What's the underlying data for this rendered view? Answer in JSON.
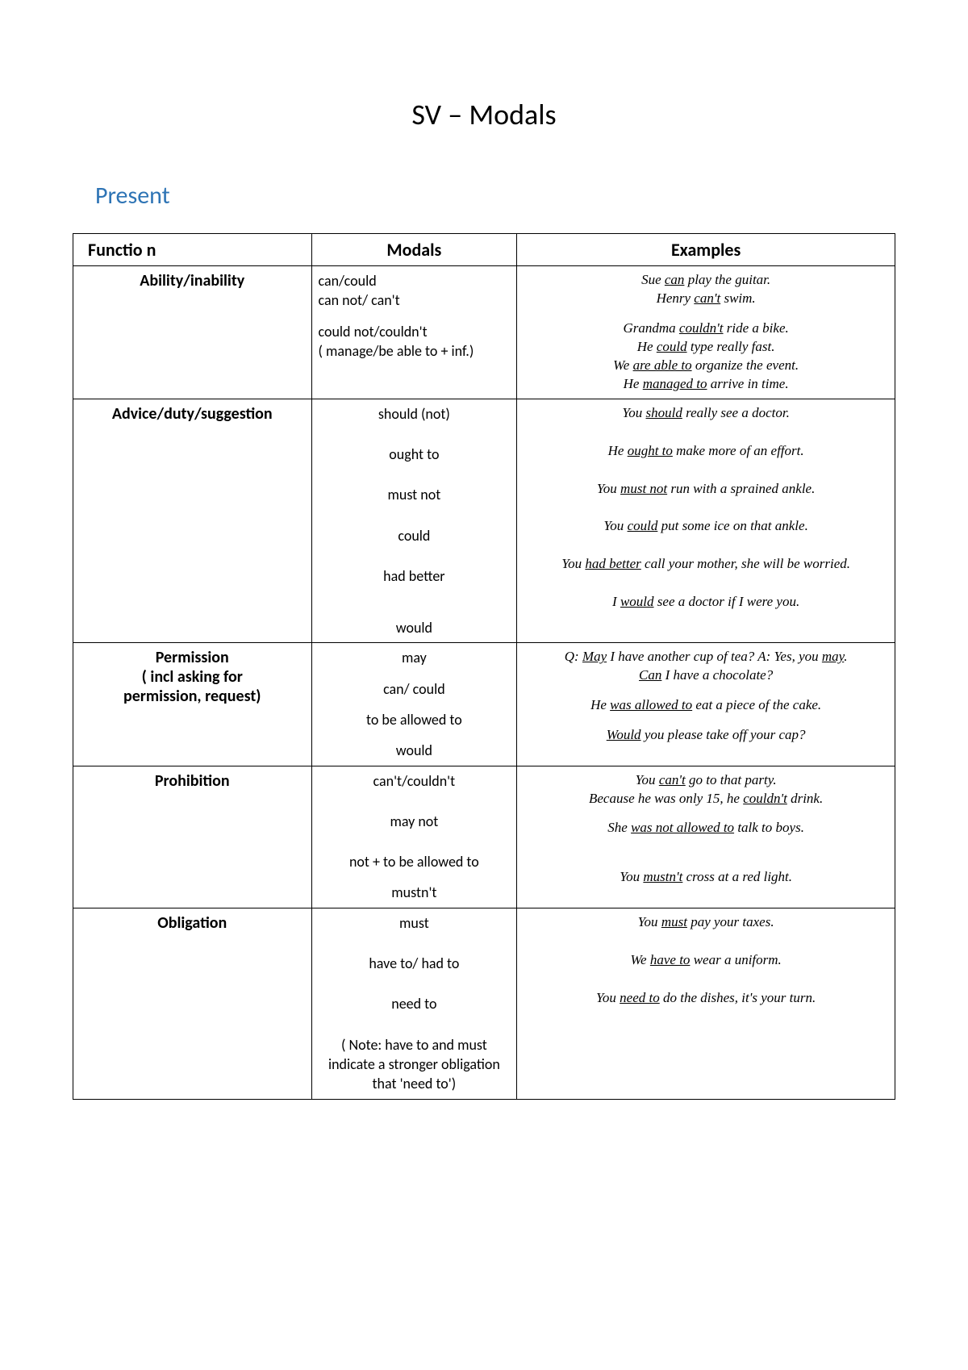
{
  "title": "SV – Modals",
  "section": "Present",
  "headers": {
    "fn": "Functio n",
    "mod": "Modals",
    "ex": "Examples"
  },
  "rows": [
    {
      "fn": [
        "Ability/inability"
      ],
      "mod_align": "left",
      "modals": [
        {
          "t": "can/could"
        },
        {
          "t": "can not/ can't"
        },
        {
          "gap": "s"
        },
        {
          "t": "could not/couldn't"
        },
        {
          "t": "( manage/be able to + inf.)"
        },
        {
          "gap": "s"
        }
      ],
      "examples": [
        {
          "pre": "Sue ",
          "u": "can",
          "post": " play the guitar."
        },
        {
          "pre": "Henry ",
          "u": "can't",
          "post": " swim."
        },
        {
          "gap": "s"
        },
        {
          "pre": "Grandma ",
          "u": "couldn't",
          "post": " ride a bike."
        },
        {
          "pre": "He ",
          "u": "could",
          "post": " type really fast."
        },
        {
          "pre": "We ",
          "u": "are able to",
          "post": " organize the event."
        },
        {
          "pre": "He ",
          "u": "managed to",
          "post": " arrive in time."
        }
      ]
    },
    {
      "fn": [
        "Advice/duty/suggestion"
      ],
      "mod_align": "center",
      "modals": [
        {
          "t": "should (not)"
        },
        {
          "gap": "m"
        },
        {
          "t": "ought to"
        },
        {
          "gap": "m"
        },
        {
          "t": "must not"
        },
        {
          "gap": "m"
        },
        {
          "t": "could"
        },
        {
          "gap": "m"
        },
        {
          "t": "had better"
        },
        {
          "gap": "m"
        },
        {
          "gap": "s"
        },
        {
          "t": "would"
        }
      ],
      "examples": [
        {
          "pre": "You ",
          "u": "should",
          "post": " really see a doctor."
        },
        {
          "gap": "m"
        },
        {
          "pre": "He ",
          "u": "ought to",
          "post": " make more of an effort."
        },
        {
          "gap": "m"
        },
        {
          "pre": "You ",
          "u": "must not",
          "post": " run with a sprained ankle."
        },
        {
          "gap": "m"
        },
        {
          "pre": "You ",
          "u": "could",
          "post": " put some ice on that ankle."
        },
        {
          "gap": "m"
        },
        {
          "pre": "You ",
          "u": "had better",
          "post": " call your mother, she will be worried."
        },
        {
          "gap": "m"
        },
        {
          "pre": "I ",
          "u": "would",
          "post": " see a doctor if I were you."
        }
      ]
    },
    {
      "fn": [
        "Permission",
        "( incl asking for",
        "permission, request)"
      ],
      "mod_align": "center",
      "modals": [
        {
          "t": "may"
        },
        {
          "gap": "s"
        },
        {
          "t": "can/ could"
        },
        {
          "gap": "s"
        },
        {
          "t": "to be allowed to"
        },
        {
          "gap": "s"
        },
        {
          "t": "would"
        }
      ],
      "examples": [
        {
          "pre": "Q: ",
          "u": "May",
          "post": " I have another cup of tea? A: Yes, you ",
          "u2": "may",
          "post2": "."
        },
        {
          "pre": "",
          "u": "Can",
          "post": " I have a chocolate?"
        },
        {
          "gap": "s"
        },
        {
          "pre": "He ",
          "u": "was allowed to",
          "post": " eat a piece of the cake."
        },
        {
          "gap": "s"
        },
        {
          "pre": "",
          "u": "Would",
          "post": " you please take off your cap?"
        }
      ]
    },
    {
      "fn": [
        "Prohibition"
      ],
      "mod_align": "center",
      "modals": [
        {
          "t": "can't/couldn't"
        },
        {
          "gap": "m"
        },
        {
          "t": "may not"
        },
        {
          "gap": "m"
        },
        {
          "t": "not + to be allowed to"
        },
        {
          "gap": "s"
        },
        {
          "t": "mustn't"
        }
      ],
      "examples": [
        {
          "pre": "You ",
          "u": "can't",
          "post": " go to that party."
        },
        {
          "pre": "Because he was only 15, he ",
          "u": "couldn't",
          "post": " drink."
        },
        {
          "gap": "s"
        },
        {
          "pre": "She ",
          "u": "was not allowed to",
          "post": " talk to boys."
        },
        {
          "gap": "m"
        },
        {
          "gap": "s"
        },
        {
          "pre": "You ",
          "u": "mustn't",
          "post": " cross at a red light."
        }
      ]
    },
    {
      "fn": [
        "Obligation"
      ],
      "mod_align": "center",
      "modals": [
        {
          "t": "must"
        },
        {
          "gap": "m"
        },
        {
          "t": "have to/ had to"
        },
        {
          "gap": "m"
        },
        {
          "t": "need to"
        },
        {
          "gap": "m"
        },
        {
          "t": "( Note: have to and must indicate a stronger obligation that 'need to')"
        }
      ],
      "examples": [
        {
          "pre": "You ",
          "u": "must",
          "post": " pay your taxes."
        },
        {
          "gap": "m"
        },
        {
          "pre": "We ",
          "u": "have to",
          "post": " wear a uniform."
        },
        {
          "gap": "m"
        },
        {
          "pre": "You ",
          "u": "need to",
          "post": " do the dishes, it's your turn."
        }
      ]
    }
  ]
}
